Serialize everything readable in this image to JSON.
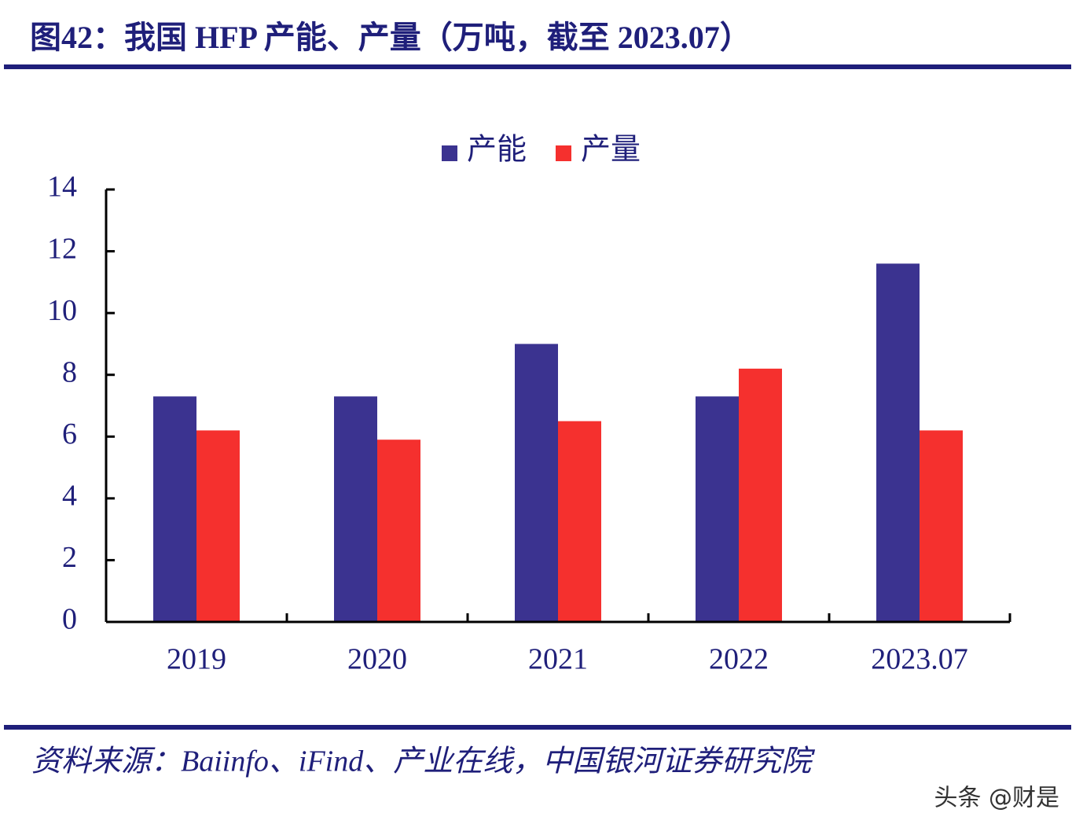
{
  "chart_data": {
    "type": "bar",
    "title": "图42：我国 HFP 产能、产量（万吨，截至 2023.07）",
    "categories": [
      "2019",
      "2020",
      "2021",
      "2022",
      "2023.07"
    ],
    "series": [
      {
        "name": "产能",
        "color": "#3b3390",
        "values": [
          7.3,
          7.3,
          9.0,
          7.3,
          11.6
        ]
      },
      {
        "name": "产量",
        "color": "#f5302e",
        "values": [
          6.2,
          5.9,
          6.5,
          8.2,
          6.2
        ]
      }
    ],
    "ylim": [
      0,
      14
    ],
    "yticks": [
      0,
      2,
      4,
      6,
      8,
      10,
      12,
      14
    ],
    "grid": false,
    "legend": "top",
    "source": "资料来源：Baiinfo、iFind、产业在线，中国银河证券研究院",
    "watermark": "头条 @财是"
  }
}
